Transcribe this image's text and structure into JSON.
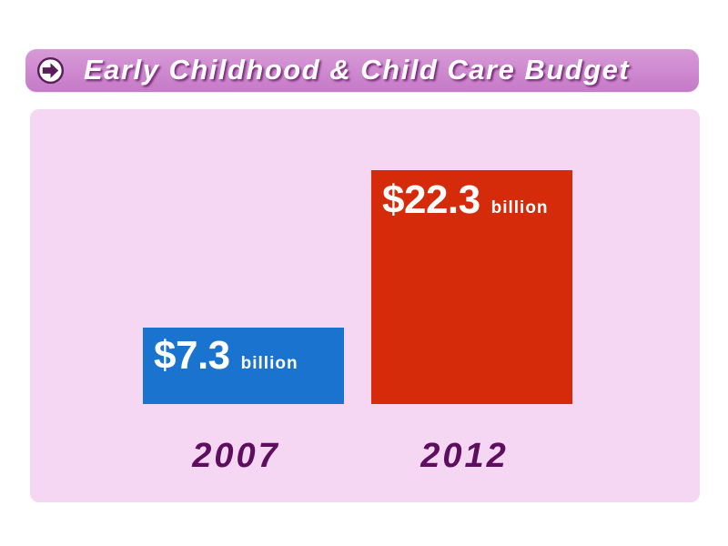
{
  "chart_data": {
    "type": "bar",
    "title": "Early Childhood & Child Care Budget",
    "categories": [
      "2007",
      "2012"
    ],
    "values": [
      7.3,
      22.3
    ],
    "value_labels": [
      {
        "amount": "$7.3",
        "unit": "billion"
      },
      {
        "amount": "$22.3",
        "unit": "billion"
      }
    ],
    "unit": "billion",
    "xlabel": "",
    "ylabel": "",
    "ylim": [
      0,
      22.3
    ],
    "grid": false,
    "bar_colors": [
      "#1a73cf",
      "#d62b0a"
    ]
  },
  "colors": {
    "title_bar": "#c57ac7",
    "panel": "#f5d6f3",
    "year_text": "#5e0e5e"
  },
  "icons": {
    "title": "arrow-right-circle-icon"
  }
}
